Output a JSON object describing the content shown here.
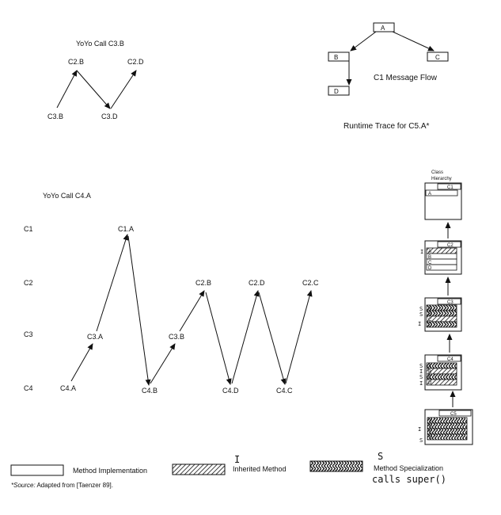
{
  "yoyo_c3b": {
    "title": "YoYo Call C3.B",
    "nodes": [
      "C2.B",
      "C2.D",
      "C3.B",
      "C3.D"
    ]
  },
  "message_flow": {
    "boxes": [
      "A",
      "B",
      "C",
      "D"
    ],
    "caption": "C1 Message Flow",
    "trace": "Runtime Trace for C5.A*"
  },
  "yoyo_c4a": {
    "title": "YoYo Call C4.A",
    "levels": [
      "C1",
      "C2",
      "C3",
      "C4"
    ],
    "nodes": [
      "C1.A",
      "C2.B",
      "C2.D",
      "C2.C",
      "C3.A",
      "C3.B",
      "C4.A",
      "C4.B",
      "C4.D",
      "C4.C"
    ]
  },
  "hierarchy": {
    "title_line1": "Class",
    "title_line2": "Hierarchy",
    "classes": [
      {
        "name": "C1",
        "methods": [
          "A"
        ],
        "marks": []
      },
      {
        "name": "C2",
        "methods": [
          "A",
          "B",
          "C",
          "D"
        ],
        "marks": [
          "I"
        ]
      },
      {
        "name": "C3",
        "methods": [
          "A",
          "B",
          "C",
          "D"
        ],
        "marks": [
          "S",
          "S",
          "I"
        ]
      },
      {
        "name": "C4",
        "methods": [
          "A",
          "B",
          "C",
          "D"
        ],
        "marks": [
          "S",
          "I",
          "S",
          "I"
        ]
      },
      {
        "name": "C5",
        "methods": [
          "A",
          "B",
          "C",
          "D"
        ],
        "marks": [
          "I",
          "S"
        ]
      }
    ]
  },
  "legend": {
    "impl": "Method Implementation",
    "inherited_mark": "I",
    "inherited": "Inherited Method",
    "spec_mark": "S",
    "spec": "Method Specialization",
    "handwritten": "calls super()"
  },
  "source": {
    "prefix": "*Source:",
    "text": " Adapted from [Taenzer 89]."
  }
}
